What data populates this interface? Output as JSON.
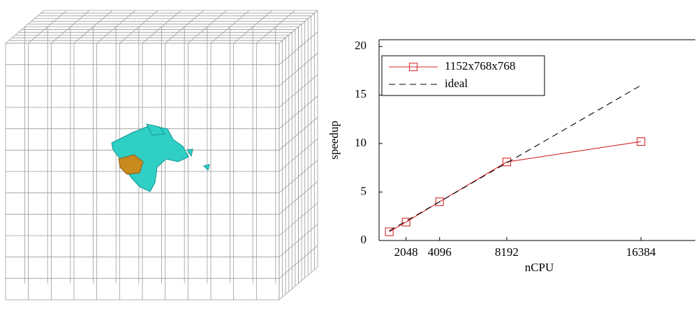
{
  "chart_data": {
    "type": "line",
    "xlabel": "nCPU",
    "ylabel": "speedup",
    "x": [
      1024,
      2048,
      4096,
      8192,
      16384
    ],
    "series": [
      {
        "name": "1152x768x768",
        "color": "#d62728",
        "marker": "square",
        "dash": false,
        "values": [
          0.9,
          1.9,
          4.0,
          8.1,
          10.2
        ]
      },
      {
        "name": "ideal",
        "color": "#000000",
        "marker": "none",
        "dash": true,
        "values": [
          1,
          2,
          4,
          8,
          16
        ]
      }
    ],
    "xlim": [
      400,
      19700
    ],
    "ylim": [
      0,
      20.7
    ],
    "xticks": [
      2048,
      4096,
      8192,
      16384
    ],
    "yticks": [
      0,
      5,
      10,
      15,
      20
    ],
    "legend": "upper left"
  }
}
